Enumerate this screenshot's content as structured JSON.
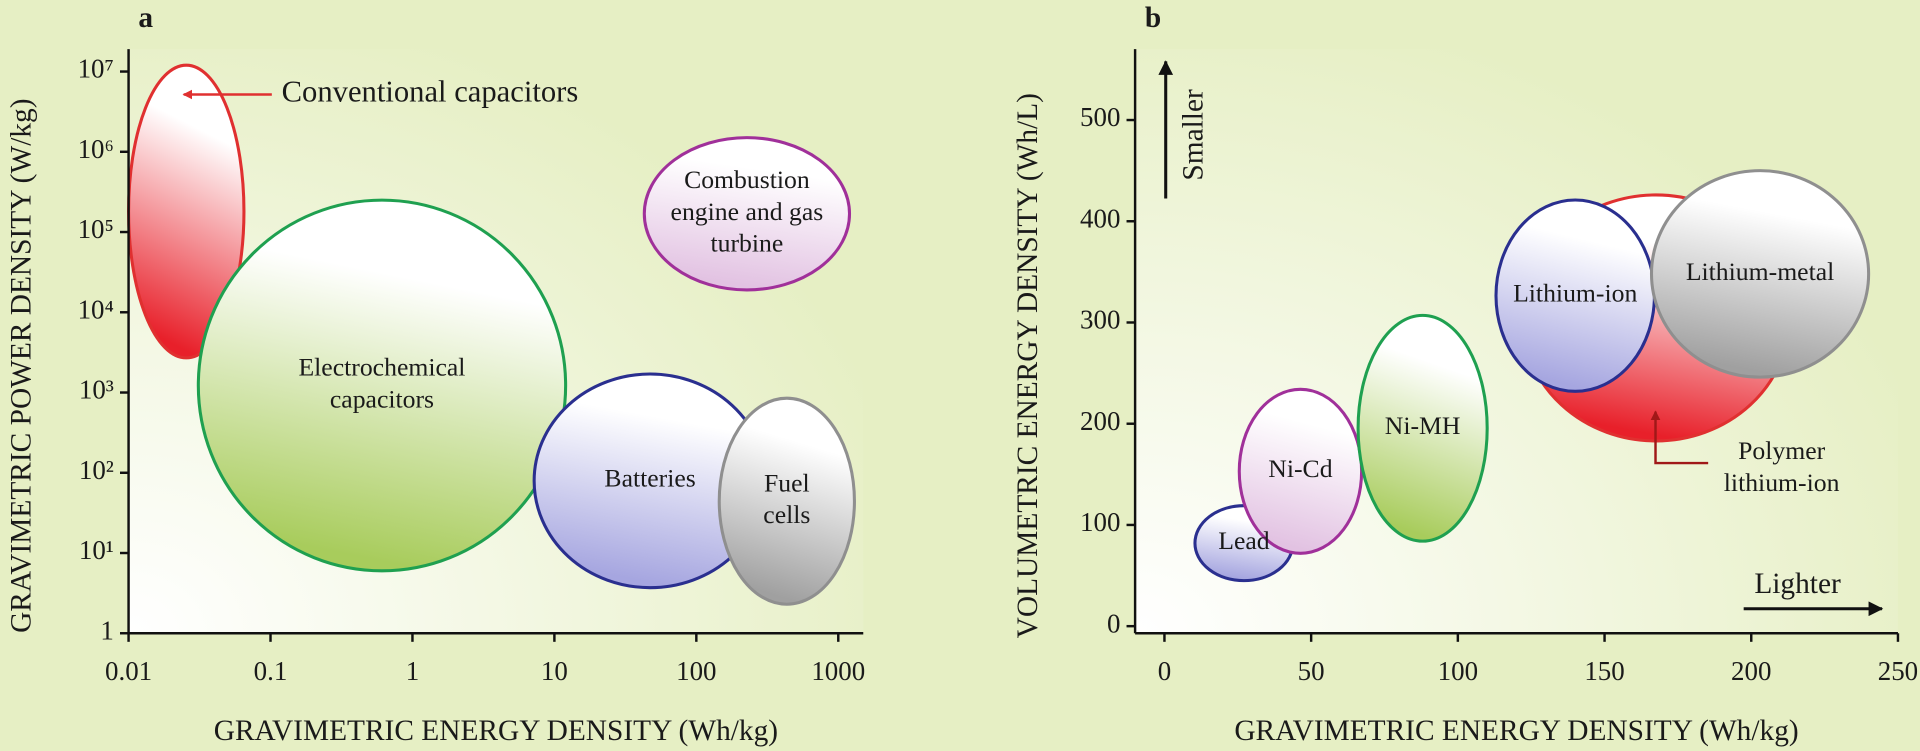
{
  "chart_data": [
    {
      "type": "ellipse",
      "panel_label": "a",
      "xlabel": "GRAVIMETRIC ENERGY DENSITY (Wh/kg)",
      "ylabel": "GRAVIMETRIC POWER DENSITY (W/kg)",
      "xscale": "log",
      "yscale": "log",
      "xlim": [
        0.01,
        1500
      ],
      "ylim": [
        1,
        19000000
      ],
      "xticks": [
        0.01,
        0.1,
        1,
        10,
        100,
        1000
      ],
      "yticks": [
        1,
        {
          "value": 10,
          "label": "10¹"
        },
        {
          "value": 100,
          "label": "10²"
        },
        {
          "value": 1000,
          "label": "10³"
        },
        {
          "value": 10000,
          "label": "10⁴"
        },
        {
          "value": 100000,
          "label": "10⁵"
        },
        {
          "value": 1000000,
          "label": "10⁶"
        },
        {
          "value": 10000000,
          "label": "10⁷"
        }
      ],
      "series": [
        {
          "name": "Conventional capacitors",
          "color": "#e8202a",
          "stroke": "#e03030",
          "x": [
            0.01,
            0.065
          ],
          "y": [
            2700,
            12000000
          ]
        },
        {
          "name": "Electrochemical\ncapacitors",
          "color": "#a8cc5c",
          "stroke": "#1fa050",
          "x": [
            0.031,
            12
          ],
          "y": [
            6,
            250000
          ]
        },
        {
          "name": "Batteries",
          "color": "#a6a6e0",
          "stroke": "#2a2f8f",
          "x": [
            7.2,
            310
          ],
          "y": [
            3.7,
            1700
          ]
        },
        {
          "name": "Fuel\ncells",
          "color": "#a0a0a0",
          "stroke": "#8f8f8f",
          "x": [
            145,
            1300
          ],
          "y": [
            2.3,
            850
          ]
        },
        {
          "name": "Combustion\nengine and gas\nturbine",
          "color": "#e2c2e2",
          "stroke": "#a0309a",
          "x": [
            43,
            1200
          ],
          "y": [
            19000,
            1500000
          ]
        }
      ]
    },
    {
      "type": "ellipse",
      "panel_label": "b",
      "xlabel": "GRAVIMETRIC ENERGY DENSITY (Wh/kg)",
      "ylabel": "VOLUMETRIC ENERGY DENSITY (Wh/L)",
      "xscale": "linear",
      "yscale": "linear",
      "xlim": [
        -10,
        250
      ],
      "ylim": [
        -7,
        570
      ],
      "xticks": [
        0,
        50,
        100,
        150,
        200,
        250
      ],
      "yticks": [
        0,
        100,
        200,
        300,
        400,
        500
      ],
      "annotations": [
        "Smaller",
        "Lighter"
      ],
      "series": [
        {
          "name": "Lead",
          "color": "#a6a6e0",
          "stroke": "#2a2f8f",
          "x": [
            10.4,
            43.8
          ],
          "y": [
            45,
            119
          ]
        },
        {
          "name": "Ni-Cd",
          "color": "#e2c2e2",
          "stroke": "#a0309a",
          "x": [
            25.5,
            67.2
          ],
          "y": [
            72,
            234
          ]
        },
        {
          "name": "Ni-MH",
          "color": "#a8cc5c",
          "stroke": "#1fa050",
          "x": [
            66,
            110
          ],
          "y": [
            84,
            307
          ]
        },
        {
          "name": "Polymer\nlithium-ion",
          "color": "#e8202a",
          "stroke": "#e03030",
          "x": [
            122,
            213
          ],
          "y": [
            183,
            426
          ]
        },
        {
          "name": "Lithium-ion",
          "color": "#a6a6e0",
          "stroke": "#2a2f8f",
          "x": [
            113,
            167
          ],
          "y": [
            232,
            421
          ]
        },
        {
          "name": "Lithium-metal",
          "color": "#a0a0a0",
          "stroke": "#8f8f8f",
          "x": [
            166,
            240
          ],
          "y": [
            246,
            450
          ]
        }
      ]
    }
  ]
}
